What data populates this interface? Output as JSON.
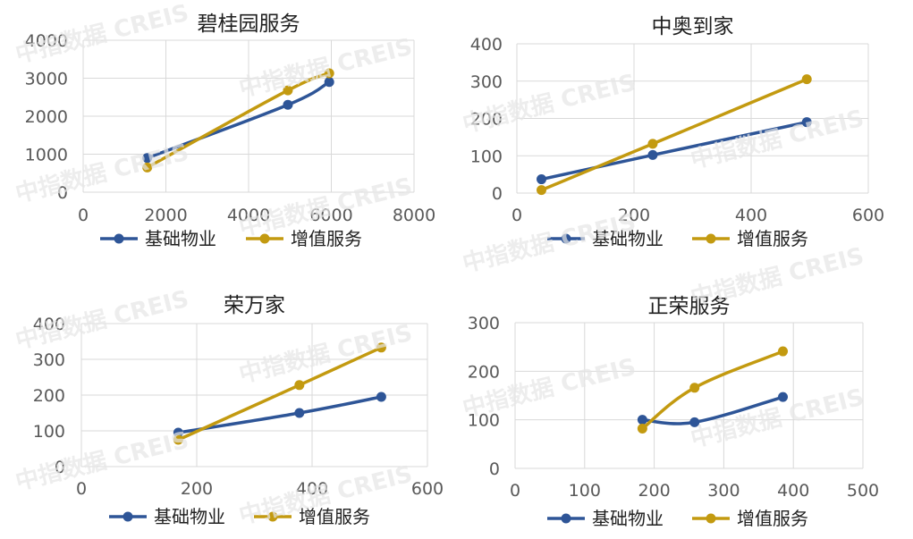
{
  "watermark": "中指数据 CREIS",
  "colors": {
    "base": "#2e5597",
    "value_added": "#c39a10",
    "grid": "#d9d9d9",
    "axis_text": "#595959"
  },
  "chart_data": [
    {
      "type": "scatter",
      "title": "碧桂园服务",
      "xlim": [
        0,
        8000
      ],
      "ylim": [
        0,
        4000
      ],
      "xticks": [
        0,
        2000,
        4000,
        6000,
        8000
      ],
      "yticks": [
        0,
        1000,
        2000,
        3000,
        4000
      ],
      "legend_position": "bottom",
      "series": [
        {
          "name": "基础物业",
          "color": "#2e5597",
          "points": [
            [
              1550,
              900
            ],
            [
              4950,
              2300
            ],
            [
              5950,
              2900
            ]
          ]
        },
        {
          "name": "增值服务",
          "color": "#c39a10",
          "points": [
            [
              1550,
              650
            ],
            [
              4950,
              2680
            ],
            [
              5950,
              3130
            ]
          ]
        }
      ]
    },
    {
      "type": "scatter",
      "title": "中奥到家",
      "xlim": [
        0,
        600
      ],
      "ylim": [
        0,
        400
      ],
      "xticks": [
        0,
        200,
        400,
        600
      ],
      "yticks": [
        0,
        100,
        200,
        300,
        400
      ],
      "legend_position": "bottom",
      "series": [
        {
          "name": "基础物业",
          "color": "#2e5597",
          "points": [
            [
              42,
              37
            ],
            [
              232,
              102
            ],
            [
              495,
              190
            ]
          ]
        },
        {
          "name": "增值服务",
          "color": "#c39a10",
          "points": [
            [
              42,
              8
            ],
            [
              232,
              132
            ],
            [
              495,
              305
            ]
          ]
        }
      ]
    },
    {
      "type": "scatter",
      "title": "荣万家",
      "xlim": [
        0,
        600
      ],
      "ylim": [
        0,
        400
      ],
      "xticks": [
        0,
        200,
        400,
        600
      ],
      "yticks": [
        0,
        100,
        200,
        300,
        400
      ],
      "legend_position": "bottom",
      "series": [
        {
          "name": "基础物业",
          "color": "#2e5597",
          "points": [
            [
              168,
              95
            ],
            [
              378,
              150
            ],
            [
              520,
              195
            ]
          ]
        },
        {
          "name": "增值服务",
          "color": "#c39a10",
          "points": [
            [
              168,
              75
            ],
            [
              378,
              228
            ],
            [
              520,
              333
            ]
          ]
        }
      ]
    },
    {
      "type": "scatter",
      "title": "正荣服务",
      "xlim": [
        0,
        500
      ],
      "ylim": [
        0,
        300
      ],
      "xticks": [
        0,
        100,
        200,
        300,
        400,
        500
      ],
      "yticks": [
        0,
        100,
        200,
        300
      ],
      "legend_position": "bottom",
      "series": [
        {
          "name": "基础物业",
          "color": "#2e5597",
          "points": [
            [
              183,
              100
            ],
            [
              258,
              95
            ],
            [
              385,
              147
            ]
          ]
        },
        {
          "name": "增值服务",
          "color": "#c39a10",
          "points": [
            [
              183,
              82
            ],
            [
              258,
              166
            ],
            [
              385,
              241
            ]
          ]
        }
      ]
    }
  ]
}
